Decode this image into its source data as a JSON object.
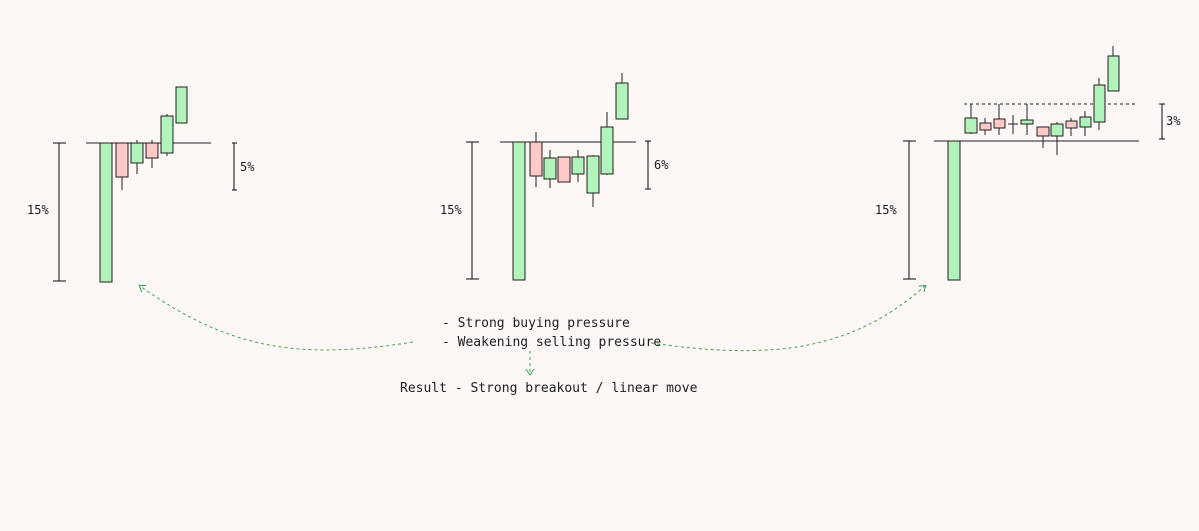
{
  "colors": {
    "background": "#fdf8f5",
    "bull_fill": "#b2f2bb",
    "bear_fill": "#ffc9c9",
    "ink": "#1e1e1e",
    "arrow": "#3aa35a"
  },
  "diagrams": [
    {
      "left_move_label": "15%",
      "range_label": "5%"
    },
    {
      "left_move_label": "15%",
      "range_label": "6%"
    },
    {
      "left_move_label": "15%",
      "range_label": "3%"
    }
  ],
  "notes": {
    "line1": "- Strong buying pressure",
    "line2": "- Weakening selling pressure",
    "result": "Result - Strong breakout / linear move"
  }
}
